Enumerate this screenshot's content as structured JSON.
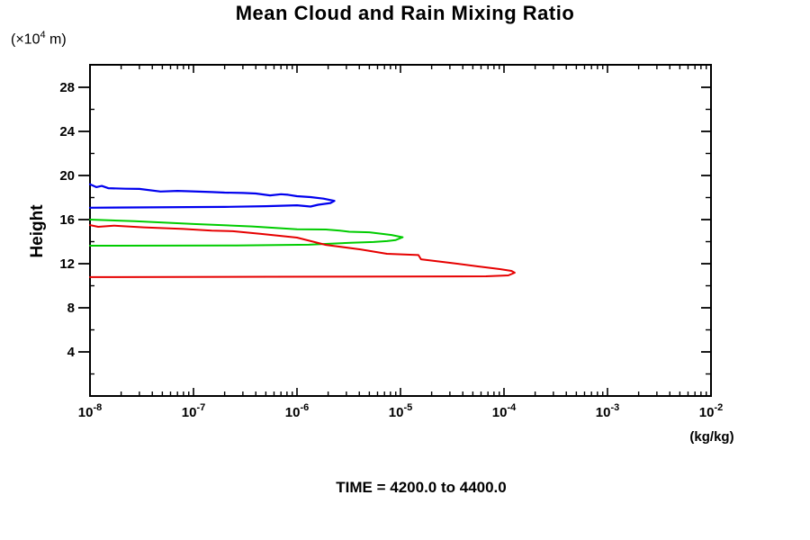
{
  "page": {
    "title": "Mean Cloud and Rain Mixing Ratio",
    "time_caption": "TIME = 4200.0 to 4400.0",
    "y_units_prefix": "(×10",
    "y_units_exponent": "4",
    "y_units_suffix": " m)",
    "y_axis_label": "Height",
    "x_units": "(kg/kg)"
  },
  "chart_data": {
    "type": "line",
    "title": "Mean Cloud and Rain Mixing Ratio",
    "annotation": "TIME = 4200.0 to 4400.0",
    "xlabel": "(kg/kg)",
    "ylabel": "Height (x10^4 m)",
    "x_scale": "log",
    "xlim": [
      1e-08,
      0.01
    ],
    "x_tick_exponents": [
      -8,
      -7,
      -6,
      -5,
      -4,
      -3,
      -2
    ],
    "ylim": [
      0,
      30
    ],
    "y_major_ticks": [
      4,
      8,
      12,
      16,
      20,
      24,
      28
    ],
    "y_minor_step": 2,
    "grid": false,
    "legend": "none",
    "axis_color": "#000000",
    "series": [
      {
        "name": "blue-profile",
        "color": "#0000ee",
        "stroke_width": 2.2,
        "points": [
          [
            1e-08,
            19.2
          ],
          [
            1.15e-08,
            18.95
          ],
          [
            1.3e-08,
            19.05
          ],
          [
            1.5e-08,
            18.85
          ],
          [
            2.2e-08,
            18.8
          ],
          [
            3e-08,
            18.78
          ],
          [
            4.8e-08,
            18.55
          ],
          [
            7e-08,
            18.6
          ],
          [
            9e-08,
            18.57
          ],
          [
            1.5e-07,
            18.5
          ],
          [
            2e-07,
            18.45
          ],
          [
            3e-07,
            18.42
          ],
          [
            4e-07,
            18.37
          ],
          [
            5.5e-07,
            18.2
          ],
          [
            7e-07,
            18.3
          ],
          [
            8.2e-07,
            18.25
          ],
          [
            1e-06,
            18.12
          ],
          [
            1.35e-06,
            18.04
          ],
          [
            1.8e-06,
            17.9
          ],
          [
            2.3e-06,
            17.7
          ],
          [
            2.1e-06,
            17.5
          ],
          [
            1.6e-06,
            17.35
          ],
          [
            1.35e-06,
            17.18
          ],
          [
            1e-06,
            17.3
          ],
          [
            5e-07,
            17.22
          ],
          [
            2e-07,
            17.15
          ],
          [
            1e-08,
            17.08
          ]
        ]
      },
      {
        "name": "green-profile",
        "color": "#00cc00",
        "stroke_width": 2.0,
        "points": [
          [
            1e-08,
            16.0
          ],
          [
            2.7e-08,
            15.85
          ],
          [
            1e-07,
            15.6
          ],
          [
            3.7e-07,
            15.38
          ],
          [
            1e-06,
            15.12
          ],
          [
            1.9e-06,
            15.1
          ],
          [
            2.6e-06,
            15.0
          ],
          [
            3.2e-06,
            14.9
          ],
          [
            5e-06,
            14.85
          ],
          [
            6.7e-06,
            14.7
          ],
          [
            8.2e-06,
            14.6
          ],
          [
            1.05e-05,
            14.4
          ],
          [
            9e-06,
            14.15
          ],
          [
            7.4e-06,
            14.05
          ],
          [
            5.5e-06,
            13.97
          ],
          [
            3.3e-06,
            13.9
          ],
          [
            2e-06,
            13.8
          ],
          [
            1.3e-06,
            13.72
          ],
          [
            2.6e-07,
            13.65
          ],
          [
            1e-08,
            13.63
          ]
        ]
      },
      {
        "name": "red-profile",
        "color": "#e60000",
        "stroke_width": 2.0,
        "points": [
          [
            1e-08,
            15.5
          ],
          [
            1.2e-08,
            15.35
          ],
          [
            1.7e-08,
            15.45
          ],
          [
            3.3e-08,
            15.3
          ],
          [
            8e-08,
            15.15
          ],
          [
            1.5e-07,
            15.0
          ],
          [
            2.4e-07,
            14.95
          ],
          [
            4.5e-07,
            14.7
          ],
          [
            1e-06,
            14.37
          ],
          [
            1.9e-06,
            13.71
          ],
          [
            4.1e-06,
            13.3
          ],
          [
            7.4e-06,
            12.9
          ],
          [
            1.49e-05,
            12.78
          ],
          [
            1.58e-05,
            12.4
          ],
          [
            3e-05,
            12.08
          ],
          [
            5.5e-05,
            11.76
          ],
          [
            9.1e-05,
            11.51
          ],
          [
            0.000118,
            11.35
          ],
          [
            0.000127,
            11.18
          ],
          [
            0.00011,
            10.94
          ],
          [
            6.7e-05,
            10.86
          ],
          [
            5.5e-07,
            10.82
          ],
          [
            1e-08,
            10.78
          ]
        ]
      }
    ]
  }
}
